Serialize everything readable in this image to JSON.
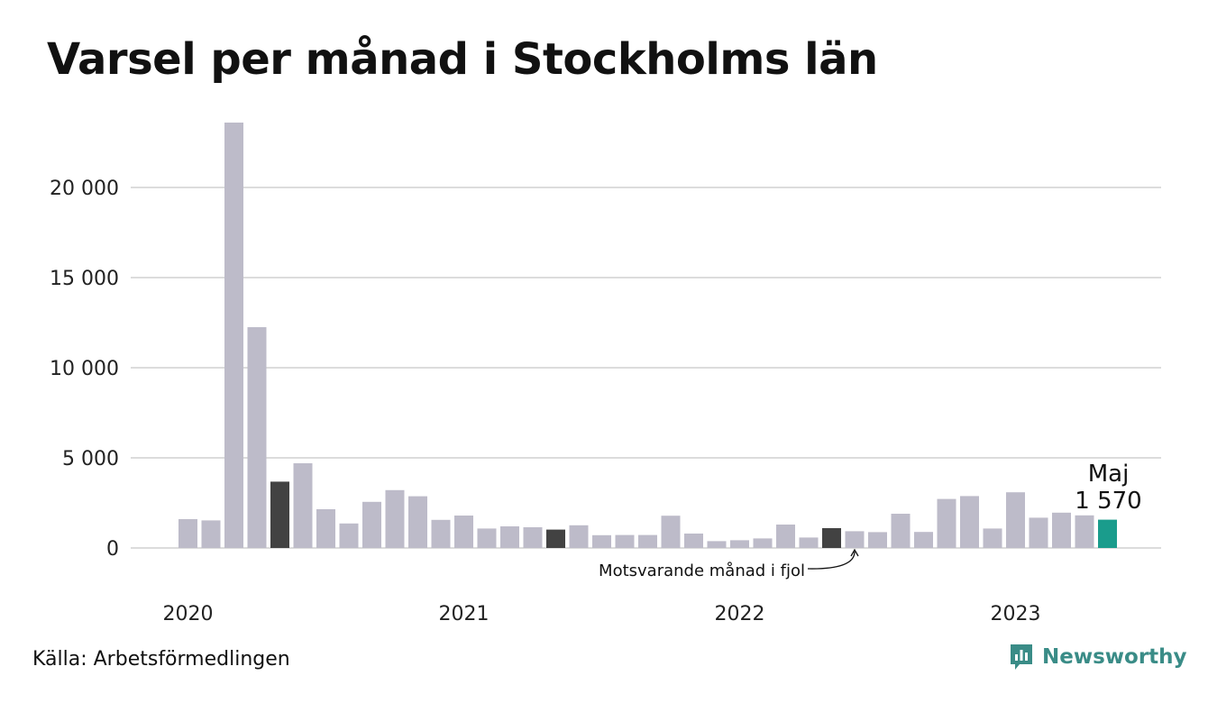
{
  "title": "Varsel per månad i Stockholms län",
  "source": "Källa: Arbetsförmedlingen",
  "brand": {
    "name": "Newsworthy",
    "color": "#3a8c87",
    "icon": "newsworthy-logo-icon"
  },
  "colors": {
    "bar": "#bdbbc9",
    "previous_year": "#424242",
    "highlight": "#1a9c8c",
    "grid": "#dcdcdc"
  },
  "annotation": {
    "text": "Motsvarande månad i fjol",
    "target_index": 29
  },
  "highlight": {
    "month": "Maj",
    "value_label": "1 570",
    "index": 40
  },
  "chart_data": {
    "type": "bar",
    "title": "Varsel per månad i Stockholms län",
    "xlabel": "",
    "ylabel": "",
    "ylim": [
      0,
      23600
    ],
    "grid": true,
    "y_ticks": [
      {
        "value": 0,
        "label": "0"
      },
      {
        "value": 5000,
        "label": "5 000"
      },
      {
        "value": 10000,
        "label": "10 000"
      },
      {
        "value": 15000,
        "label": "15 000"
      },
      {
        "value": 20000,
        "label": "20 000"
      }
    ],
    "x_ticks": [
      {
        "index": 0,
        "label": "2020"
      },
      {
        "index": 12,
        "label": "2021"
      },
      {
        "index": 24,
        "label": "2022"
      },
      {
        "index": 36,
        "label": "2023"
      }
    ],
    "categories": [
      "2020-01",
      "2020-02",
      "2020-03",
      "2020-04",
      "2020-05",
      "2020-06",
      "2020-07",
      "2020-08",
      "2020-09",
      "2020-10",
      "2020-11",
      "2020-12",
      "2021-01",
      "2021-02",
      "2021-03",
      "2021-04",
      "2021-05",
      "2021-06",
      "2021-07",
      "2021-08",
      "2021-09",
      "2021-10",
      "2021-11",
      "2021-12",
      "2022-01",
      "2022-02",
      "2022-03",
      "2022-04",
      "2022-05",
      "2022-06",
      "2022-07",
      "2022-08",
      "2022-09",
      "2022-10",
      "2022-11",
      "2022-12",
      "2023-01",
      "2023-02",
      "2023-03",
      "2023-04",
      "2023-05"
    ],
    "values": [
      1600,
      1530,
      23600,
      12250,
      3680,
      4700,
      2150,
      1360,
      2560,
      3210,
      2870,
      1560,
      1800,
      1080,
      1200,
      1150,
      1020,
      1260,
      710,
      720,
      720,
      1790,
      800,
      380,
      430,
      530,
      1300,
      580,
      1100,
      930,
      880,
      1900,
      890,
      2720,
      2880,
      1080,
      3090,
      1680,
      1960,
      1810,
      1570
    ],
    "highlight_indices": [
      4,
      16,
      28,
      40
    ]
  }
}
